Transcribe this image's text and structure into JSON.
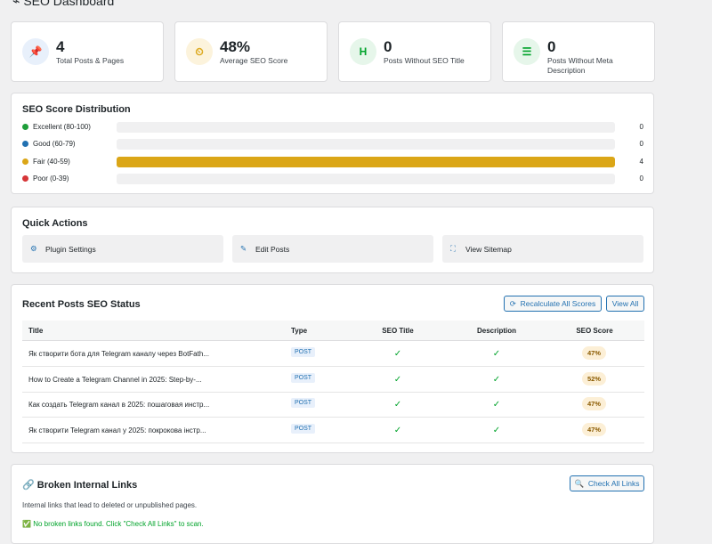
{
  "header": {
    "title": "SEO Dashboard"
  },
  "stats": [
    {
      "icon": "📌",
      "value": 4,
      "label": "Total Posts & Pages"
    },
    {
      "icon": "⏲",
      "value": "48%",
      "label": "Average SEO Score"
    },
    {
      "icon": "H",
      "value": 0,
      "label": "Posts Without SEO Title"
    },
    {
      "icon": "☰",
      "value": 0,
      "label": "Posts Without Meta Description"
    }
  ],
  "distribution": {
    "title": "SEO Score Distribution",
    "rows": [
      {
        "label": "Excellent (80-100)",
        "color": "#1e9e3a",
        "value": 0
      },
      {
        "label": "Good (60-79)",
        "color": "#2271b1",
        "value": 0
      },
      {
        "label": "Fair (40-59)",
        "color": "#dba617",
        "value": 4
      },
      {
        "label": "Poor (0-39)",
        "color": "#d63638",
        "value": 0
      }
    ]
  },
  "quick_actions": {
    "title": "Quick Actions",
    "items": [
      "Plugin Settings",
      "Edit Posts",
      "View Sitemap"
    ]
  },
  "recent": {
    "title": "Recent Posts SEO Status",
    "buttons": [
      "Recalculate All Scores",
      "View All"
    ],
    "columns": [
      "Title",
      "Type",
      "SEO Title",
      "Description",
      "SEO Score"
    ],
    "rows": [
      [
        "Як створити бота для Telegram каналу через BotFath...",
        "POST",
        "✓",
        "✓",
        "47%"
      ],
      [
        "How to Create a Telegram Channel in 2025: Step-by-...",
        "POST",
        "✓",
        "✓",
        "52%"
      ],
      [
        "Как создать Telegram канал в 2025: пошаговая инстр...",
        "POST",
        "✓",
        "✓",
        "47%"
      ],
      [
        "Як створити Telegram канал у 2025: покрокова інстр...",
        "POST",
        "✓",
        "✓",
        "47%"
      ]
    ]
  },
  "broken": {
    "title": "Broken Internal Links",
    "button": "Check All Links",
    "description": "Internal links that lead to deleted or unpublished pages.",
    "status": "No broken links found. Click \"Check All Links\" to scan."
  }
}
